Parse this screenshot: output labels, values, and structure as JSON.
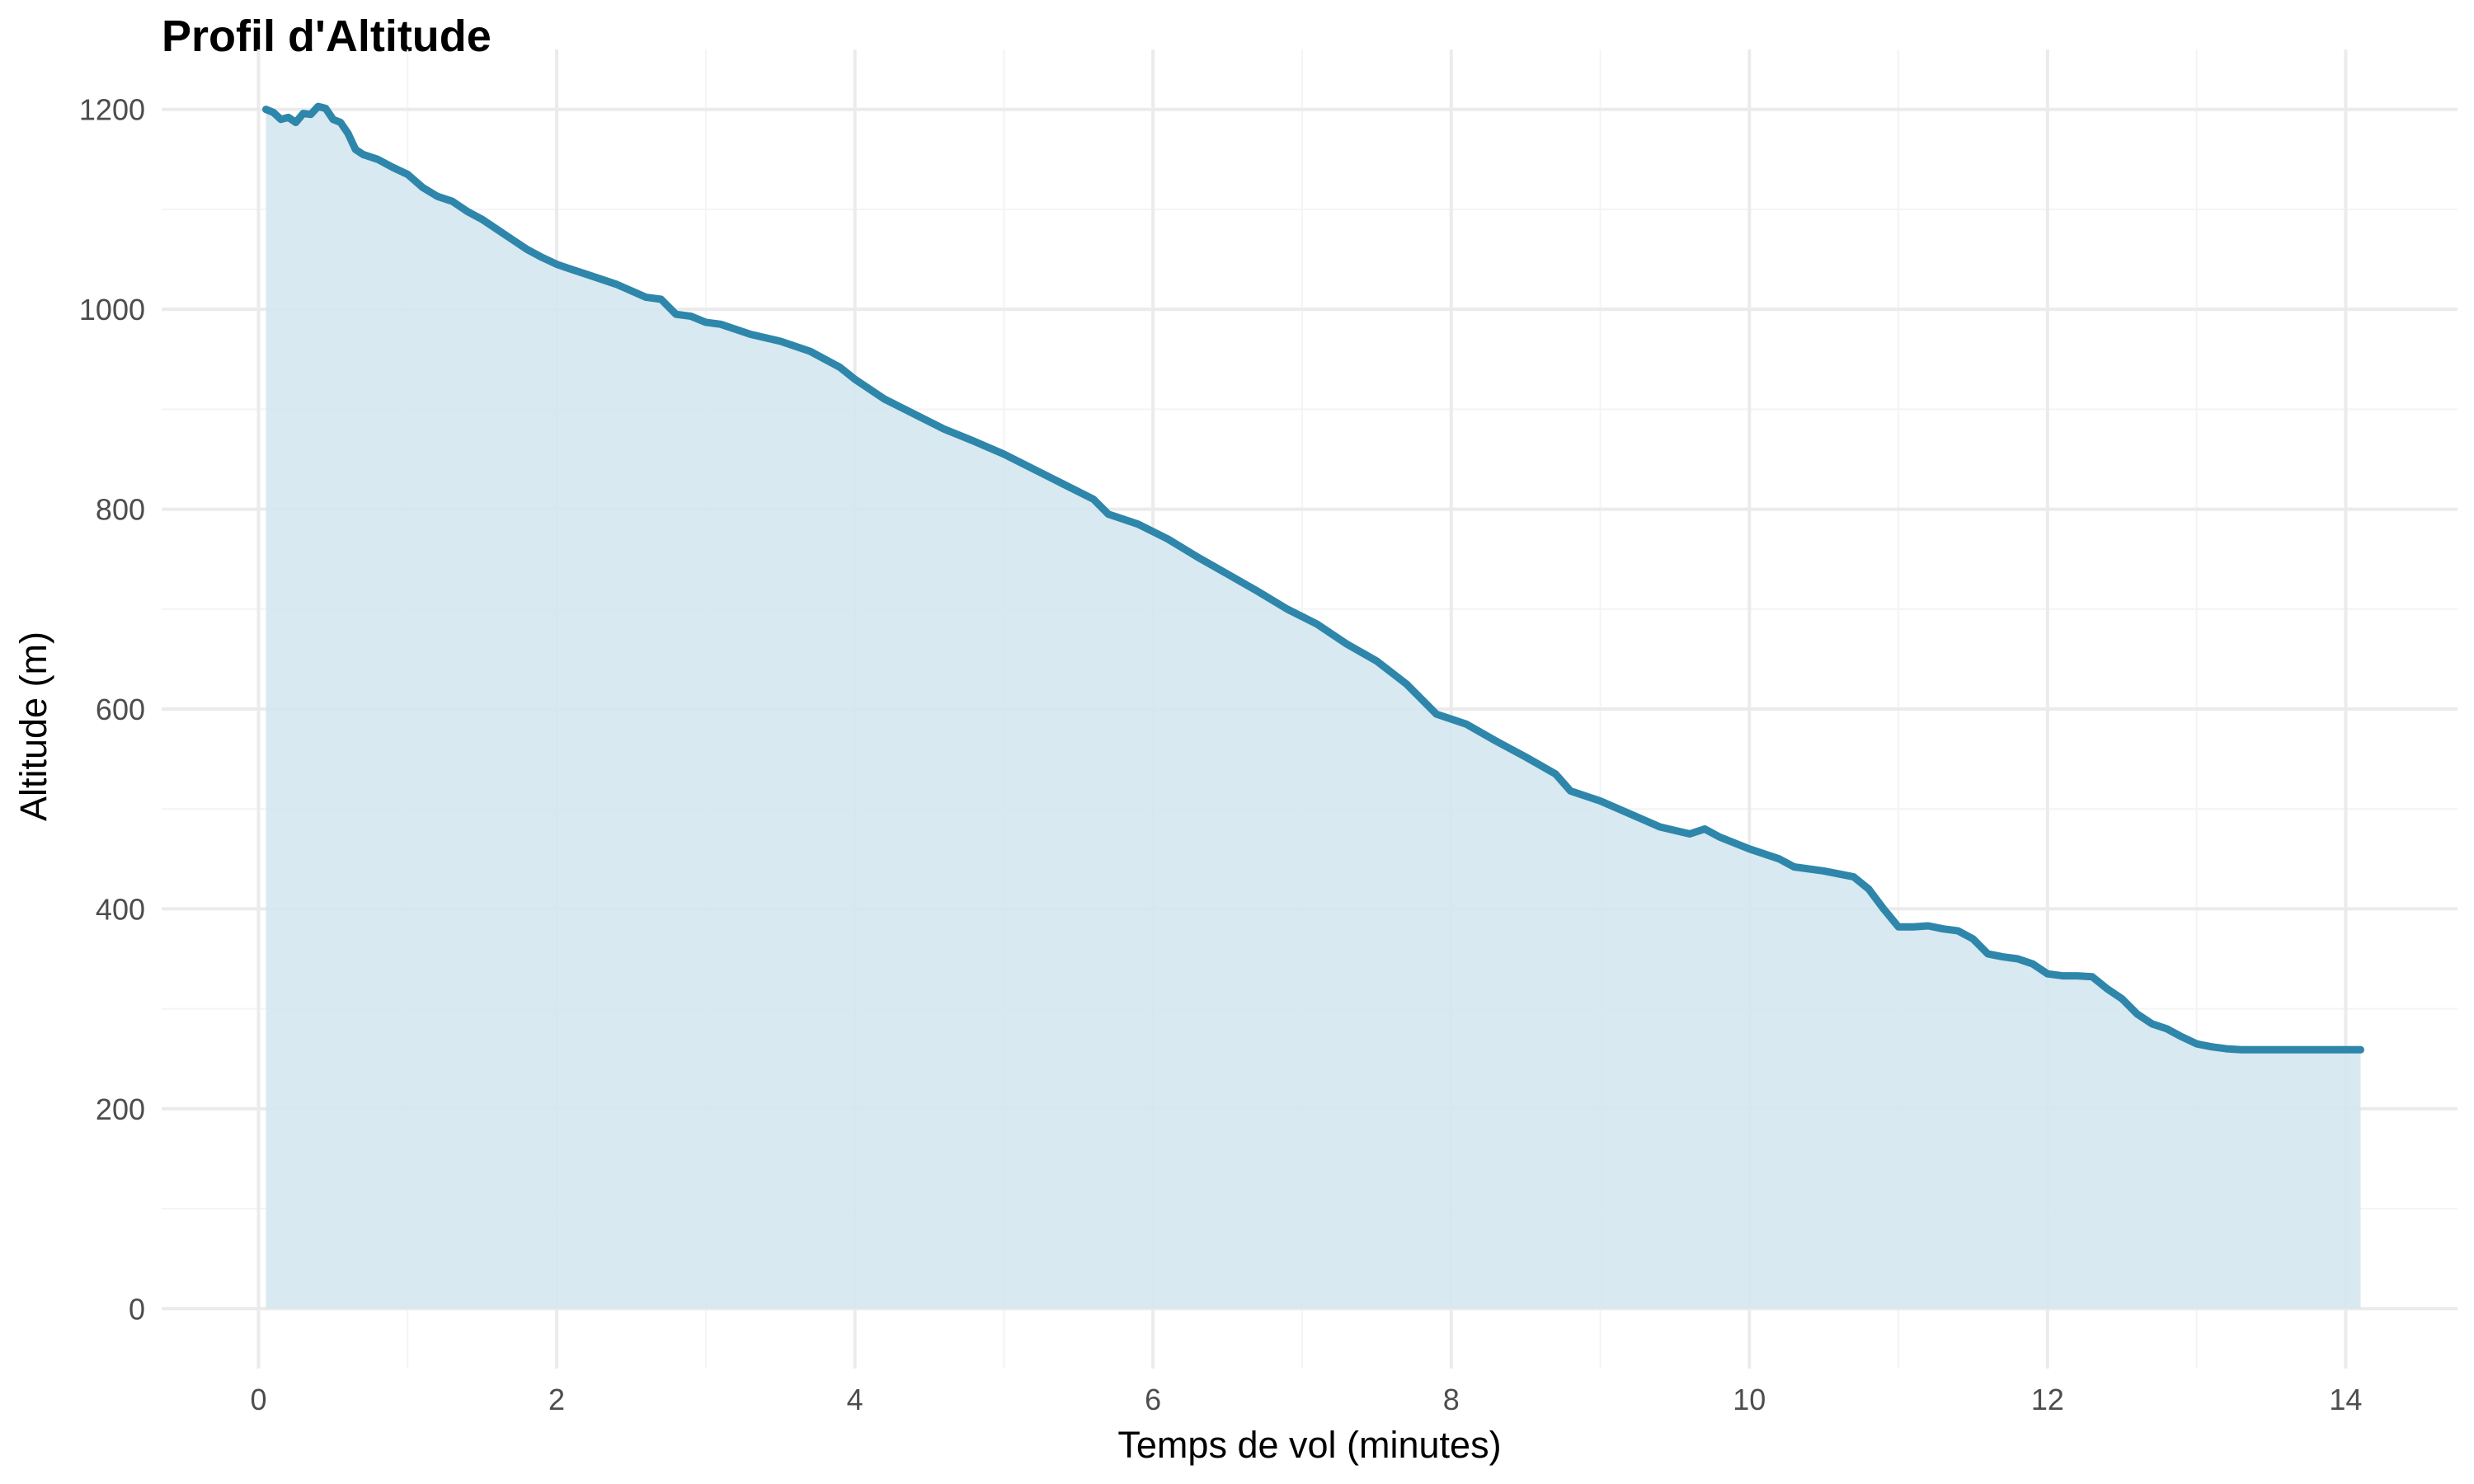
{
  "chart_data": {
    "type": "area",
    "title": "Profil d'Altitude",
    "xlabel": "Temps de vol (minutes)",
    "ylabel": "Altitude (m)",
    "xlim": [
      -0.65,
      14.75
    ],
    "ylim": [
      -60,
      1260
    ],
    "x_ticks": [
      0,
      2,
      4,
      6,
      8,
      10,
      12,
      14
    ],
    "y_ticks": [
      0,
      200,
      400,
      600,
      800,
      1000,
      1200
    ],
    "x_tick_labels": [
      "0",
      "2",
      "4",
      "6",
      "8",
      "10",
      "12",
      "14"
    ],
    "y_tick_labels": [
      "0",
      "200",
      "400",
      "600",
      "800",
      "1000",
      "1200"
    ],
    "grid": true,
    "legend": "none",
    "colors": {
      "line": "#2e86ab",
      "fill": "#d4e7ef"
    },
    "series": [
      {
        "x": [
          0.05,
          0.1,
          0.15,
          0.2,
          0.25,
          0.3,
          0.35,
          0.4,
          0.45,
          0.5,
          0.55,
          0.6,
          0.65,
          0.7,
          0.8,
          0.9,
          1.0,
          1.1,
          1.2,
          1.3,
          1.4,
          1.5,
          1.6,
          1.7,
          1.8,
          1.9,
          2.0,
          2.1,
          2.2,
          2.4,
          2.6,
          2.7,
          2.8,
          2.9,
          3.0,
          3.1,
          3.3,
          3.5,
          3.7,
          3.9,
          4.0,
          4.2,
          4.4,
          4.6,
          4.8,
          5.0,
          5.2,
          5.4,
          5.6,
          5.7,
          5.9,
          6.1,
          6.3,
          6.5,
          6.7,
          6.9,
          7.1,
          7.3,
          7.5,
          7.7,
          7.9,
          8.1,
          8.3,
          8.5,
          8.7,
          8.8,
          9.0,
          9.2,
          9.4,
          9.6,
          9.7,
          9.8,
          10.0,
          10.2,
          10.3,
          10.5,
          10.7,
          10.8,
          10.9,
          11.0,
          11.1,
          11.2,
          11.3,
          11.4,
          11.5,
          11.6,
          11.7,
          11.8,
          11.9,
          12.0,
          12.1,
          12.2,
          12.3,
          12.4,
          12.5,
          12.6,
          12.7,
          12.8,
          12.9,
          13.0,
          13.1,
          13.2,
          13.3,
          13.4,
          13.5,
          13.6,
          13.7,
          13.8,
          13.9,
          14.0,
          14.1
        ],
        "y": [
          1200,
          1197,
          1190,
          1192,
          1187,
          1196,
          1195,
          1203,
          1201,
          1190,
          1187,
          1176,
          1160,
          1155,
          1150,
          1142,
          1135,
          1122,
          1113,
          1108,
          1098,
          1090,
          1080,
          1070,
          1060,
          1052,
          1045,
          1040,
          1035,
          1025,
          1012,
          1010,
          995,
          993,
          987,
          985,
          975,
          968,
          958,
          942,
          930,
          910,
          895,
          880,
          868,
          855,
          840,
          825,
          810,
          795,
          785,
          770,
          752,
          735,
          718,
          700,
          685,
          665,
          648,
          625,
          595,
          585,
          568,
          552,
          535,
          518,
          508,
          495,
          482,
          475,
          480,
          472,
          460,
          450,
          442,
          438,
          432,
          420,
          400,
          382,
          382,
          383,
          380,
          378,
          370,
          355,
          352,
          350,
          345,
          335,
          333,
          333,
          332,
          320,
          310,
          295,
          285,
          280,
          272,
          265,
          262,
          260,
          259,
          259,
          259,
          259,
          259,
          259,
          259,
          259,
          259
        ]
      }
    ]
  }
}
